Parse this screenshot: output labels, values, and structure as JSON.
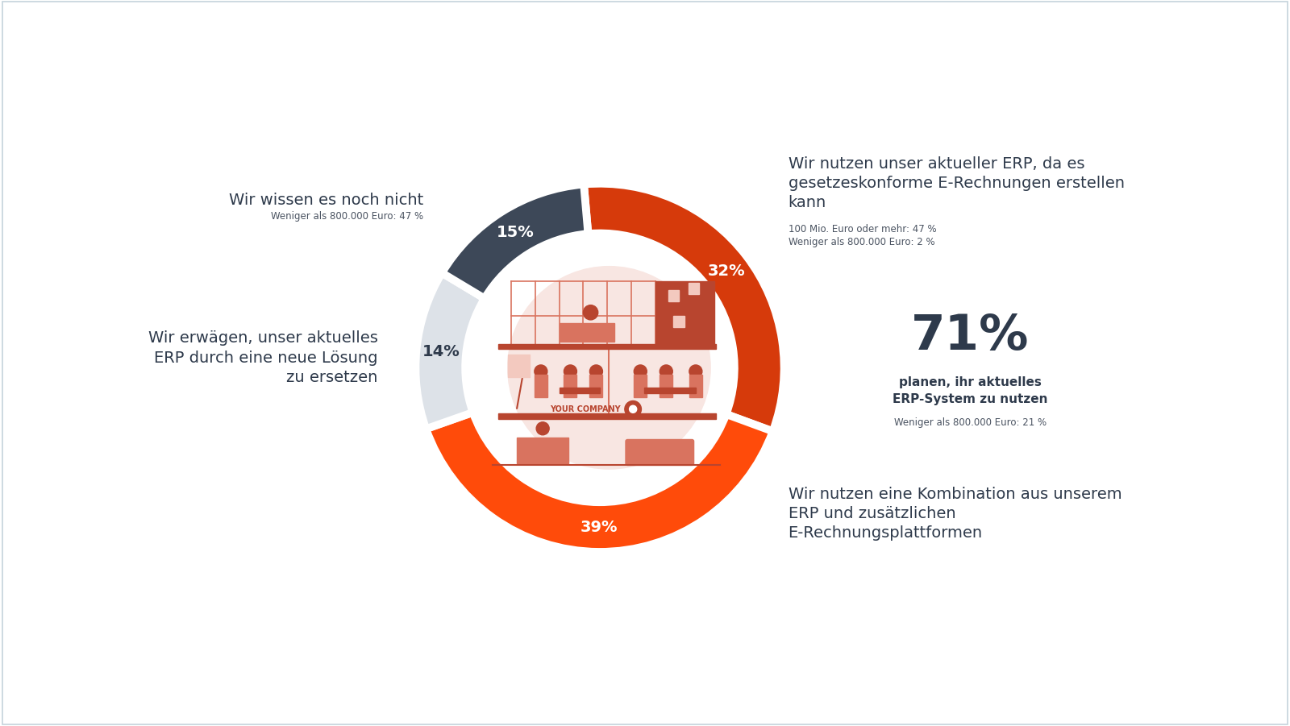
{
  "chart_data": {
    "type": "donut",
    "categories": [
      [
        "Wir nutzen unser aktueller ERP, da es",
        "gesetzeskonforme E-Rechnungen erstellen",
        "kann"
      ],
      [
        "Wir nutzen eine Kombination aus unserem",
        "ERP und zusätzlichen",
        "E-Rechnungsplattformen"
      ],
      [
        "Wir erwägen, unser aktuelles",
        "ERP durch eine neue Lösung",
        "zu ersetzen"
      ],
      [
        "Wir wissen es noch nicht"
      ]
    ],
    "values": [
      32,
      39,
      14,
      15
    ],
    "value_labels": [
      "32%",
      "39%",
      "14%",
      "15%"
    ],
    "colors": [
      "#D63A0B",
      "#FF4B0A",
      "#DDE2E8",
      "#3D4858"
    ],
    "data_labels": true,
    "category_notes": [
      [
        "100 Mio. Euro oder mehr: 47 %",
        "Weniger als 800.000 Euro: 2 %"
      ],
      [],
      [],
      [
        "Weniger als 800.000 Euro: 47 %"
      ]
    ],
    "highlight": {
      "value": 71,
      "value_label": "71%",
      "text_lines": [
        "planen, ihr aktuelles",
        "ERP-System zu nutzen"
      ],
      "note": "Weniger als 800.000 Euro: 21 %"
    },
    "illustration_text": "YOUR COMPANY"
  }
}
